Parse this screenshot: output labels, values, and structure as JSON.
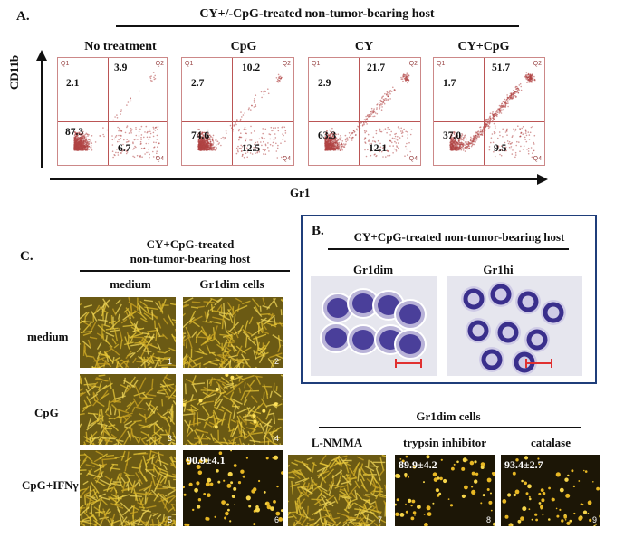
{
  "panel_a": {
    "letter": "A.",
    "header": "CY+/-CpG-treated non-tumor-bearing host",
    "y_axis": "CD11b",
    "x_axis": "Gr1",
    "quadrant_labels": [
      "Q1",
      "Q2",
      "Q4"
    ],
    "plots": [
      {
        "title": "No treatment",
        "q1": "2.1",
        "q2": "3.9",
        "q3": "87.3",
        "q4": "6.7"
      },
      {
        "title": "CpG",
        "q1": "2.7",
        "q2": "10.2",
        "q3": "74.6",
        "q4": "12.5"
      },
      {
        "title": "CY",
        "q1": "2.9",
        "q2": "21.7",
        "q3": "63.3",
        "q4": "12.1"
      },
      {
        "title": "CY+CpG",
        "q1": "1.7",
        "q2": "51.7",
        "q3": "37.0",
        "q4": "9.5"
      }
    ]
  },
  "panel_b": {
    "letter": "B.",
    "header": "CY+CpG-treated non-tumor-bearing host",
    "left_label": "Gr1dim",
    "right_label": "Gr1hi"
  },
  "panel_c": {
    "letter": "C.",
    "header_line1": "CY+CpG-treated",
    "header_line2": "non-tumor-bearing host",
    "col_medium": "medium",
    "col_gr1dim": "Gr1dim cells",
    "row_medium": "medium",
    "row_cpg": "CpG",
    "row_cpg_ifn": "CpG+IFNγ",
    "group_header": "Gr1dim cells",
    "inhibitors": [
      "L-NMMA",
      "trypsin inhibitor",
      "catalase"
    ],
    "image_numbers": [
      "1",
      "2",
      "3",
      "4",
      "5",
      "6",
      "7",
      "8",
      "9"
    ],
    "values": {
      "img6": "90.9±4.1",
      "img8": "89.9±4.2",
      "img9": "93.4±2.7"
    }
  },
  "colors": {
    "facs_dots": "#b04444",
    "facs_border": "#c88888",
    "box_border": "#1f3e7a",
    "microscopy_bg": "#5a4a10",
    "scale_bar": "#e03030"
  }
}
